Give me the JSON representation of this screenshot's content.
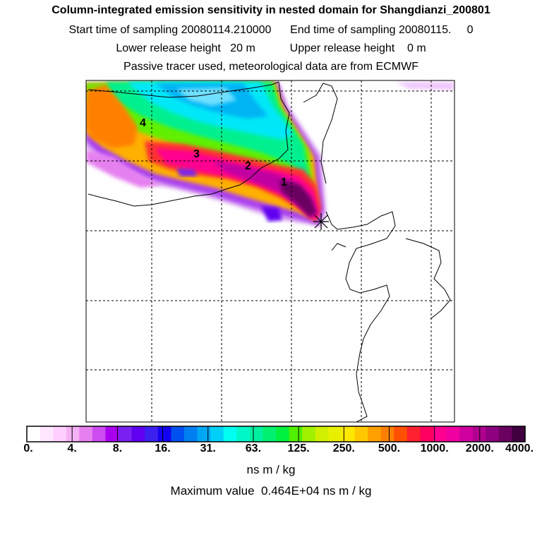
{
  "header": {
    "title": "Column-integrated emission sensitivity in nested domain for Shangdianzi_200801",
    "sampling_line": "Start time of sampling 20080114.210000      End time of sampling 20080115.     0",
    "release_line": "Lower release height   20 m           Upper release height    0 m",
    "tracer_line": "Passive tracer used, meteorological data are from ECMWF"
  },
  "map": {
    "markers": [
      "1",
      "2",
      "3",
      "4"
    ],
    "receptor": "Shangdianzi"
  },
  "colorbar": {
    "tick_labels": [
      "0.",
      "4.",
      "8.",
      "16.",
      "31.",
      "63.",
      "125.",
      "250.",
      "500.",
      "1000.",
      "2000.",
      "4000."
    ],
    "colors": [
      "#ffffff",
      "#ffe8ff",
      "#ffd0ff",
      "#f4b2f4",
      "#e680f0",
      "#cc4cf0",
      "#aa00f0",
      "#7a20f0",
      "#6000f0",
      "#3c20f0",
      "#1400f0",
      "#0050f0",
      "#0080f0",
      "#00a8f4",
      "#00d0f8",
      "#00fff0",
      "#00f8c8",
      "#00f0a0",
      "#00f070",
      "#00f040",
      "#50f000",
      "#a0f000",
      "#d0f000",
      "#e8f000",
      "#ffe800",
      "#ffc800",
      "#ffa000",
      "#ff8000",
      "#ff5000",
      "#ff2030",
      "#ff0060",
      "#ff0090",
      "#f000a0",
      "#d000a0",
      "#b00090",
      "#8c0080",
      "#6a0060",
      "#400040"
    ],
    "units": "ns m / kg"
  },
  "footer": {
    "max_value_line": "Maximum value  0.464E+04 ns m / kg"
  }
}
